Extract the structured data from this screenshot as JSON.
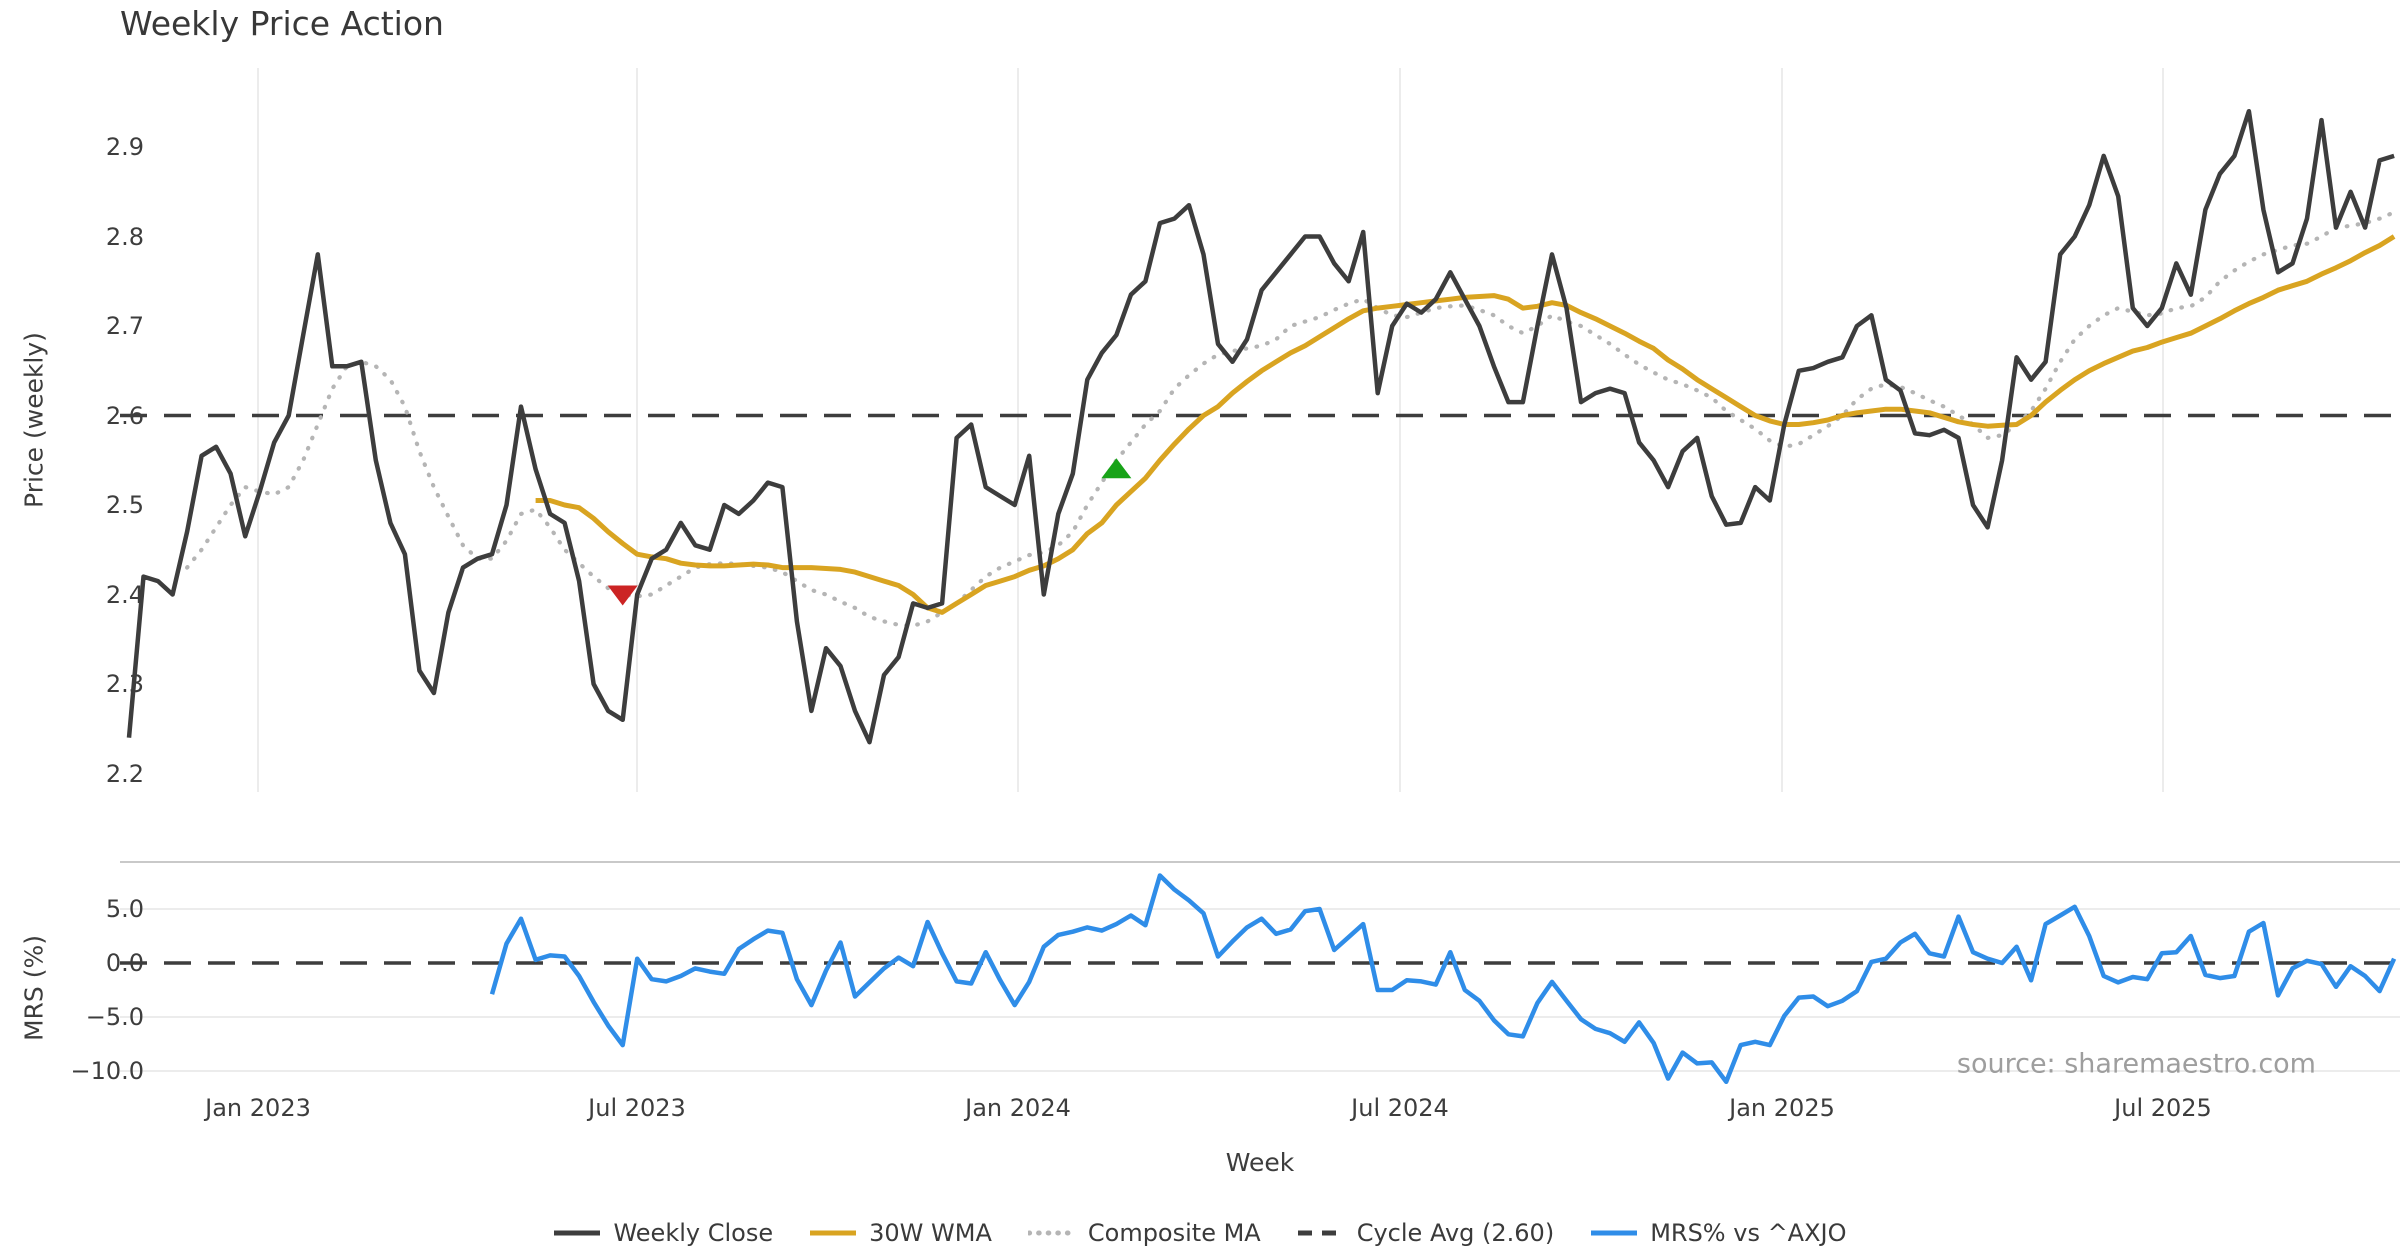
{
  "chart_data": {
    "type": "line",
    "title": "Weekly Price Action",
    "source": "source: sharemaestro.com",
    "x": {
      "label": "Week",
      "ticks": [
        "Jan 2023",
        "Jul 2023",
        "Jan 2024",
        "Jul 2024",
        "Jan 2025",
        "Jul 2025"
      ]
    },
    "legend": [
      {
        "label": "Weekly Close",
        "color": "#3d3d3d",
        "style": "solid"
      },
      {
        "label": "30W WMA",
        "color": "#d9a421",
        "style": "solid"
      },
      {
        "label": "Composite MA",
        "color": "#b5b5b5",
        "style": "dotted"
      },
      {
        "label": "Cycle Avg (2.60)",
        "color": "#3d3d3d",
        "style": "dashed"
      },
      {
        "label": "MRS% vs ^AXJO",
        "color": "#2f8de8",
        "style": "solid"
      }
    ],
    "panels": [
      {
        "ylabel": "Price (weekly)",
        "yticks": [
          "2.9",
          "2.8",
          "2.7",
          "2.6",
          "2.5",
          "2.4",
          "2.3",
          "2.2"
        ],
        "cycle_avg": 2.6,
        "series": [
          {
            "name": "Weekly Close",
            "color": "#3d3d3d",
            "style": "solid",
            "start_week": 0,
            "values": [
              2.24,
              2.42,
              2.415,
              2.4,
              2.47,
              2.555,
              2.565,
              2.535,
              2.465,
              2.515,
              2.57,
              2.6,
              2.69,
              2.78,
              2.655,
              2.655,
              2.66,
              2.55,
              2.48,
              2.445,
              2.315,
              2.29,
              2.38,
              2.43,
              2.44,
              2.445,
              2.5,
              2.61,
              2.54,
              2.49,
              2.48,
              2.415,
              2.3,
              2.27,
              2.26,
              2.4,
              2.44,
              2.45,
              2.48,
              2.455,
              2.45,
              2.5,
              2.49,
              2.505,
              2.525,
              2.52,
              2.37,
              2.27,
              2.34,
              2.32,
              2.27,
              2.235,
              2.31,
              2.33,
              2.39,
              2.385,
              2.39,
              2.575,
              2.59,
              2.52,
              2.51,
              2.5,
              2.555,
              2.4,
              2.49,
              2.535,
              2.64,
              2.67,
              2.69,
              2.735,
              2.75,
              2.815,
              2.82,
              2.835,
              2.78,
              2.68,
              2.66,
              2.685,
              2.74,
              2.76,
              2.78,
              2.8,
              2.8,
              2.77,
              2.75,
              2.805,
              2.625,
              2.7,
              2.725,
              2.715,
              2.73,
              2.76,
              2.73,
              2.7,
              2.655,
              2.615,
              2.615,
              2.7,
              2.78,
              2.72,
              2.615,
              2.625,
              2.63,
              2.625,
              2.57,
              2.55,
              2.52,
              2.56,
              2.575,
              2.51,
              2.478,
              2.48,
              2.52,
              2.505,
              2.59,
              2.65,
              2.653,
              2.66,
              2.665,
              2.7,
              2.712,
              2.64,
              2.628,
              2.58,
              2.578,
              2.584,
              2.575,
              2.5,
              2.475,
              2.55,
              2.665,
              2.64,
              2.66,
              2.78,
              2.8,
              2.835,
              2.89,
              2.845,
              2.72,
              2.7,
              2.72,
              2.77,
              2.735,
              2.83,
              2.87,
              2.89,
              2.94,
              2.83,
              2.76,
              2.77,
              2.82,
              2.93,
              2.81,
              2.85,
              2.81,
              2.885,
              2.89
            ]
          },
          {
            "name": "30W WMA",
            "color": "#d9a421",
            "style": "solid",
            "start_week": 28,
            "values": [
              2.505,
              2.505,
              2.5,
              2.497,
              2.485,
              2.47,
              2.457,
              2.445,
              2.442,
              2.44,
              2.435,
              2.433,
              2.432,
              2.432,
              2.433,
              2.434,
              2.433,
              2.43,
              2.43,
              2.43,
              2.429,
              2.428,
              2.425,
              2.42,
              2.415,
              2.41,
              2.4,
              2.385,
              2.38,
              2.39,
              2.4,
              2.41,
              2.415,
              2.42,
              2.427,
              2.432,
              2.44,
              2.45,
              2.468,
              2.48,
              2.5,
              2.515,
              2.53,
              2.55,
              2.568,
              2.585,
              2.6,
              2.61,
              2.625,
              2.638,
              2.65,
              2.66,
              2.67,
              2.678,
              2.688,
              2.698,
              2.708,
              2.717,
              2.72,
              2.722,
              2.724,
              2.726,
              2.728,
              2.73,
              2.732,
              2.733,
              2.734,
              2.73,
              2.72,
              2.722,
              2.726,
              2.723,
              2.715,
              2.708,
              2.7,
              2.692,
              2.683,
              2.675,
              2.662,
              2.652,
              2.64,
              2.63,
              2.62,
              2.61,
              2.6,
              2.594,
              2.59,
              2.59,
              2.592,
              2.595,
              2.6,
              2.603,
              2.605,
              2.607,
              2.607,
              2.605,
              2.603,
              2.598,
              2.593,
              2.59,
              2.588,
              2.589,
              2.59,
              2.6,
              2.615,
              2.628,
              2.64,
              2.65,
              2.658,
              2.665,
              2.672,
              2.676,
              2.682,
              2.687,
              2.692,
              2.7,
              2.708,
              2.717,
              2.725,
              2.732,
              2.74,
              2.745,
              2.75,
              2.758,
              2.765,
              2.773,
              2.782,
              2.79,
              2.8
            ]
          },
          {
            "name": "Composite MA",
            "color": "#b5b5b5",
            "style": "dotted",
            "start_week": 4,
            "values": [
              2.43,
              2.45,
              2.475,
              2.5,
              2.52,
              2.515,
              2.512,
              2.52,
              2.55,
              2.59,
              2.63,
              2.655,
              2.66,
              2.655,
              2.64,
              2.61,
              2.56,
              2.52,
              2.487,
              2.455,
              2.44,
              2.44,
              2.46,
              2.49,
              2.495,
              2.475,
              2.45,
              2.435,
              2.42,
              2.407,
              2.4,
              2.398,
              2.4,
              2.41,
              2.42,
              2.43,
              2.434,
              2.435,
              2.434,
              2.432,
              2.43,
              2.425,
              2.415,
              2.405,
              2.4,
              2.392,
              2.385,
              2.375,
              2.37,
              2.366,
              2.365,
              2.37,
              2.38,
              2.39,
              2.405,
              2.42,
              2.43,
              2.437,
              2.444,
              2.447,
              2.455,
              2.47,
              2.5,
              2.525,
              2.55,
              2.57,
              2.59,
              2.605,
              2.63,
              2.645,
              2.658,
              2.668,
              2.672,
              2.675,
              2.678,
              2.685,
              2.7,
              2.705,
              2.71,
              2.718,
              2.725,
              2.73,
              2.72,
              2.712,
              2.71,
              2.715,
              2.72,
              2.722,
              2.723,
              2.718,
              2.712,
              2.7,
              2.692,
              2.7,
              2.712,
              2.705,
              2.7,
              2.69,
              2.68,
              2.668,
              2.657,
              2.648,
              2.64,
              2.635,
              2.628,
              2.62,
              2.605,
              2.595,
              2.585,
              2.572,
              2.565,
              2.568,
              2.578,
              2.588,
              2.6,
              2.618,
              2.63,
              2.635,
              2.632,
              2.625,
              2.617,
              2.61,
              2.6,
              2.59,
              2.575,
              2.578,
              2.59,
              2.605,
              2.63,
              2.66,
              2.685,
              2.7,
              2.712,
              2.72,
              2.716,
              2.712,
              2.714,
              2.72,
              2.722,
              2.732,
              2.75,
              2.762,
              2.772,
              2.78,
              2.785,
              2.79,
              2.792,
              2.8,
              2.81,
              2.812,
              2.815,
              2.82,
              2.827
            ]
          }
        ],
        "markers": [
          {
            "name": "sell-signal",
            "shape": "triangle-down",
            "color": "#cc2424",
            "week": 34,
            "price": 2.4
          },
          {
            "name": "buy-signal",
            "shape": "triangle-up",
            "color": "#18a318",
            "week": 68,
            "price": 2.54
          }
        ]
      },
      {
        "ylabel": "MRS (%)",
        "yticks": [
          "5.0",
          "0.0",
          "−5.0",
          "−10.0"
        ],
        "zero_line": 0,
        "series": [
          {
            "name": "MRS% vs ^AXJO",
            "color": "#2f8de8",
            "style": "solid",
            "start_week": 25,
            "values": [
              -2.9,
              1.8,
              4.1,
              0.3,
              0.7,
              0.6,
              -1.2,
              -3.6,
              -5.8,
              -7.6,
              0.4,
              -1.5,
              -1.7,
              -1.2,
              -0.5,
              -0.8,
              -1.0,
              1.3,
              2.2,
              3.0,
              2.8,
              -1.5,
              -3.9,
              -0.7,
              1.9,
              -3.1,
              -1.8,
              -0.5,
              0.5,
              -0.3,
              3.8,
              0.9,
              -1.7,
              -1.9,
              1.0,
              -1.6,
              -3.9,
              -1.75,
              1.5,
              2.6,
              2.9,
              3.3,
              3.0,
              3.6,
              4.4,
              3.5,
              8.1,
              6.8,
              5.8,
              4.6,
              0.6,
              2.0,
              3.3,
              4.1,
              2.7,
              3.1,
              4.8,
              5.0,
              1.2,
              2.4,
              3.6,
              -2.5,
              -2.5,
              -1.6,
              -1.7,
              -2.0,
              1.0,
              -2.5,
              -3.5,
              -5.3,
              -6.6,
              -6.8,
              -3.7,
              -1.75,
              -3.5,
              -5.2,
              -6.1,
              -6.5,
              -7.3,
              -5.5,
              -7.4,
              -10.7,
              -8.3,
              -9.3,
              -9.2,
              -11.0,
              -7.6,
              -7.3,
              -7.6,
              -4.9,
              -3.2,
              -3.1,
              -4.0,
              -3.5,
              -2.6,
              0.1,
              0.4,
              1.9,
              2.7,
              0.9,
              0.6,
              4.3,
              1.0,
              0.4,
              0.0,
              1.5,
              -1.6,
              3.6,
              4.4,
              5.2,
              2.5,
              -1.2,
              -1.8,
              -1.3,
              -1.5,
              0.9,
              1.0,
              2.5,
              -1.1,
              -1.4,
              -1.2,
              2.9,
              3.7,
              -3.0,
              -0.5,
              0.2,
              -0.1,
              -2.2,
              -0.3,
              -1.2,
              -2.6,
              0.4
            ]
          }
        ]
      }
    ]
  }
}
